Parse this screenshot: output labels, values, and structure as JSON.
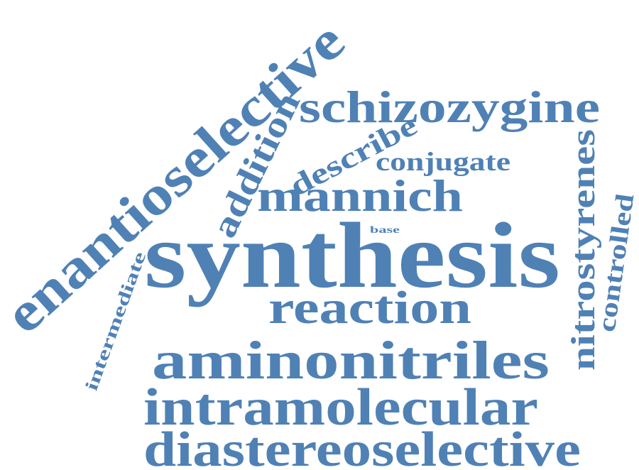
{
  "cloud": {
    "color": "#4f81b5",
    "words": [
      {
        "text": "synthesis"
      },
      {
        "text": "enantioselective"
      },
      {
        "text": "schizozygine"
      },
      {
        "text": "mannich"
      },
      {
        "text": "reaction"
      },
      {
        "text": "aminonitriles"
      },
      {
        "text": "intramolecular"
      },
      {
        "text": "diastereoselective"
      },
      {
        "text": "addition"
      },
      {
        "text": "describe"
      },
      {
        "text": "conjugate"
      },
      {
        "text": "nitrostyrenes"
      },
      {
        "text": "controlled"
      },
      {
        "text": "intermediate"
      },
      {
        "text": "base"
      }
    ]
  }
}
